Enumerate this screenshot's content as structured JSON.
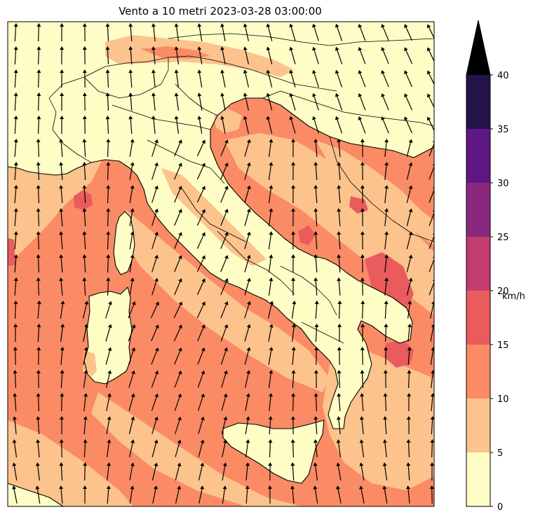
{
  "title": "Vento a 10 metri 2023-03-28 03:00:00",
  "colorbar": {
    "unit_label": "km/h",
    "levels": [
      "0",
      "5",
      "10",
      "15",
      "20",
      "25",
      "30",
      "35",
      "40"
    ],
    "colors": [
      "#fdfdc5",
      "#fcc38d",
      "#fa8b65",
      "#ea5b5e",
      "#c23c6e",
      "#8a2880",
      "#5e1783",
      "#24124a"
    ],
    "extend_color": "#000000"
  },
  "map": {
    "field_colors": {
      "calm": "#fdfdc5",
      "light": "#fcc38d",
      "moderate": "#fa8b65",
      "fresh": "#ea5b5e"
    }
  }
}
